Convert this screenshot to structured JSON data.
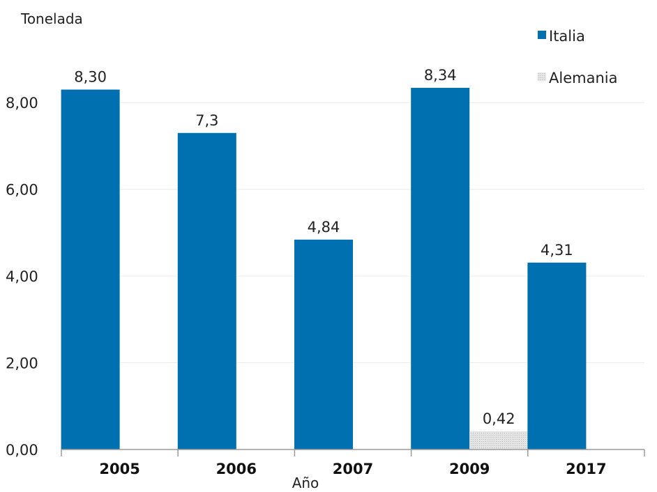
{
  "chart_data": {
    "type": "bar",
    "title": "",
    "ylabel": "Tonelada",
    "xlabel": "Año",
    "ylim": [
      0,
      9
    ],
    "yticks": [
      0,
      2,
      4,
      6,
      8
    ],
    "ytick_labels": [
      "0,00",
      "2,00",
      "4,00",
      "6,00",
      "8,00"
    ],
    "categories": [
      "2005",
      "2006",
      "2007",
      "2009",
      "2017"
    ],
    "series": [
      {
        "name": "Italia",
        "color": "#0070b0",
        "values": [
          8.3,
          7.3,
          4.84,
          8.34,
          4.31
        ],
        "labels": [
          "8,30",
          "7,3",
          "4,84",
          "8,34",
          "4,31"
        ]
      },
      {
        "name": "Alemania",
        "color": "#d9d9d9",
        "pattern": "dotted-grid",
        "values": [
          null,
          null,
          null,
          0.42,
          null
        ],
        "labels": [
          "",
          "",
          "",
          "0,42",
          ""
        ]
      }
    ],
    "legend": "top-right",
    "grid": true
  }
}
